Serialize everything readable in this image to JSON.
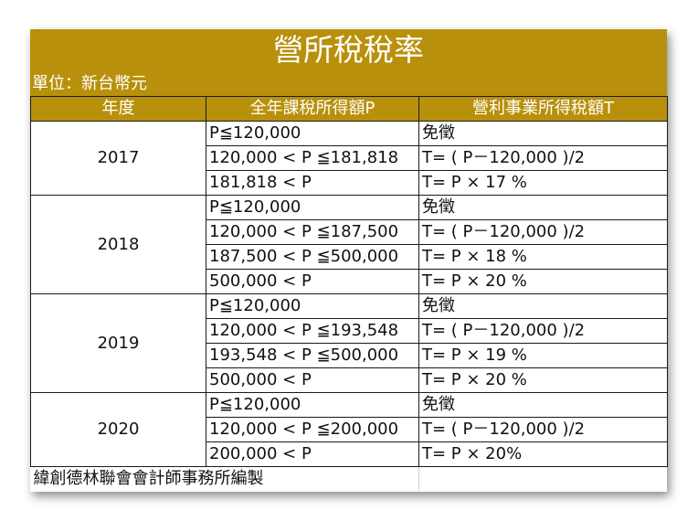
{
  "title": "營所稅稅率",
  "unit": "單位：新台幣元",
  "headers": [
    "年度",
    "全年課稅所得額P",
    "營利事業所得稅額T"
  ],
  "groups": [
    {
      "year": "2017",
      "rows": [
        {
          "income": "P≦120,000",
          "tax": "免徵"
        },
        {
          "income": "120,000 < P ≦181,818",
          "tax": "T= ( P－120,000 )/2"
        },
        {
          "income": "181,818 < P",
          "tax": "T= P × 17 %"
        }
      ]
    },
    {
      "year": "2018",
      "rows": [
        {
          "income": "P≦120,000",
          "tax": "免徵"
        },
        {
          "income": "120,000 < P ≦187,500",
          "tax": "T= ( P－120,000 )/2"
        },
        {
          "income": "187,500 < P ≦500,000",
          "tax": "T= P × 18 %"
        },
        {
          "income": "500,000 < P",
          "tax": "T= P × 20 %"
        }
      ]
    },
    {
      "year": "2019",
      "rows": [
        {
          "income": "P≦120,000",
          "tax": "免徵"
        },
        {
          "income": "120,000 < P ≦193,548",
          "tax": "T= ( P－120,000 )/2"
        },
        {
          "income": "193,548 < P ≦500,000",
          "tax": "T= P × 19 %"
        },
        {
          "income": "500,000 < P",
          "tax": "T= P × 20 %"
        }
      ]
    },
    {
      "year": "2020",
      "rows": [
        {
          "income": "P≦120,000",
          "tax": "免徵"
        },
        {
          "income": "120,000 < P ≦200,000",
          "tax": "T= ( P－120,000 )/2"
        },
        {
          "income": "200,000 < P",
          "tax": "T= P × 20%"
        }
      ]
    }
  ],
  "footer": "緯創德林聯會會計師事務所編製",
  "colors": {
    "header_bg": "#b8900b",
    "header_text": "#ffffff",
    "border": "#1a1a1a"
  }
}
